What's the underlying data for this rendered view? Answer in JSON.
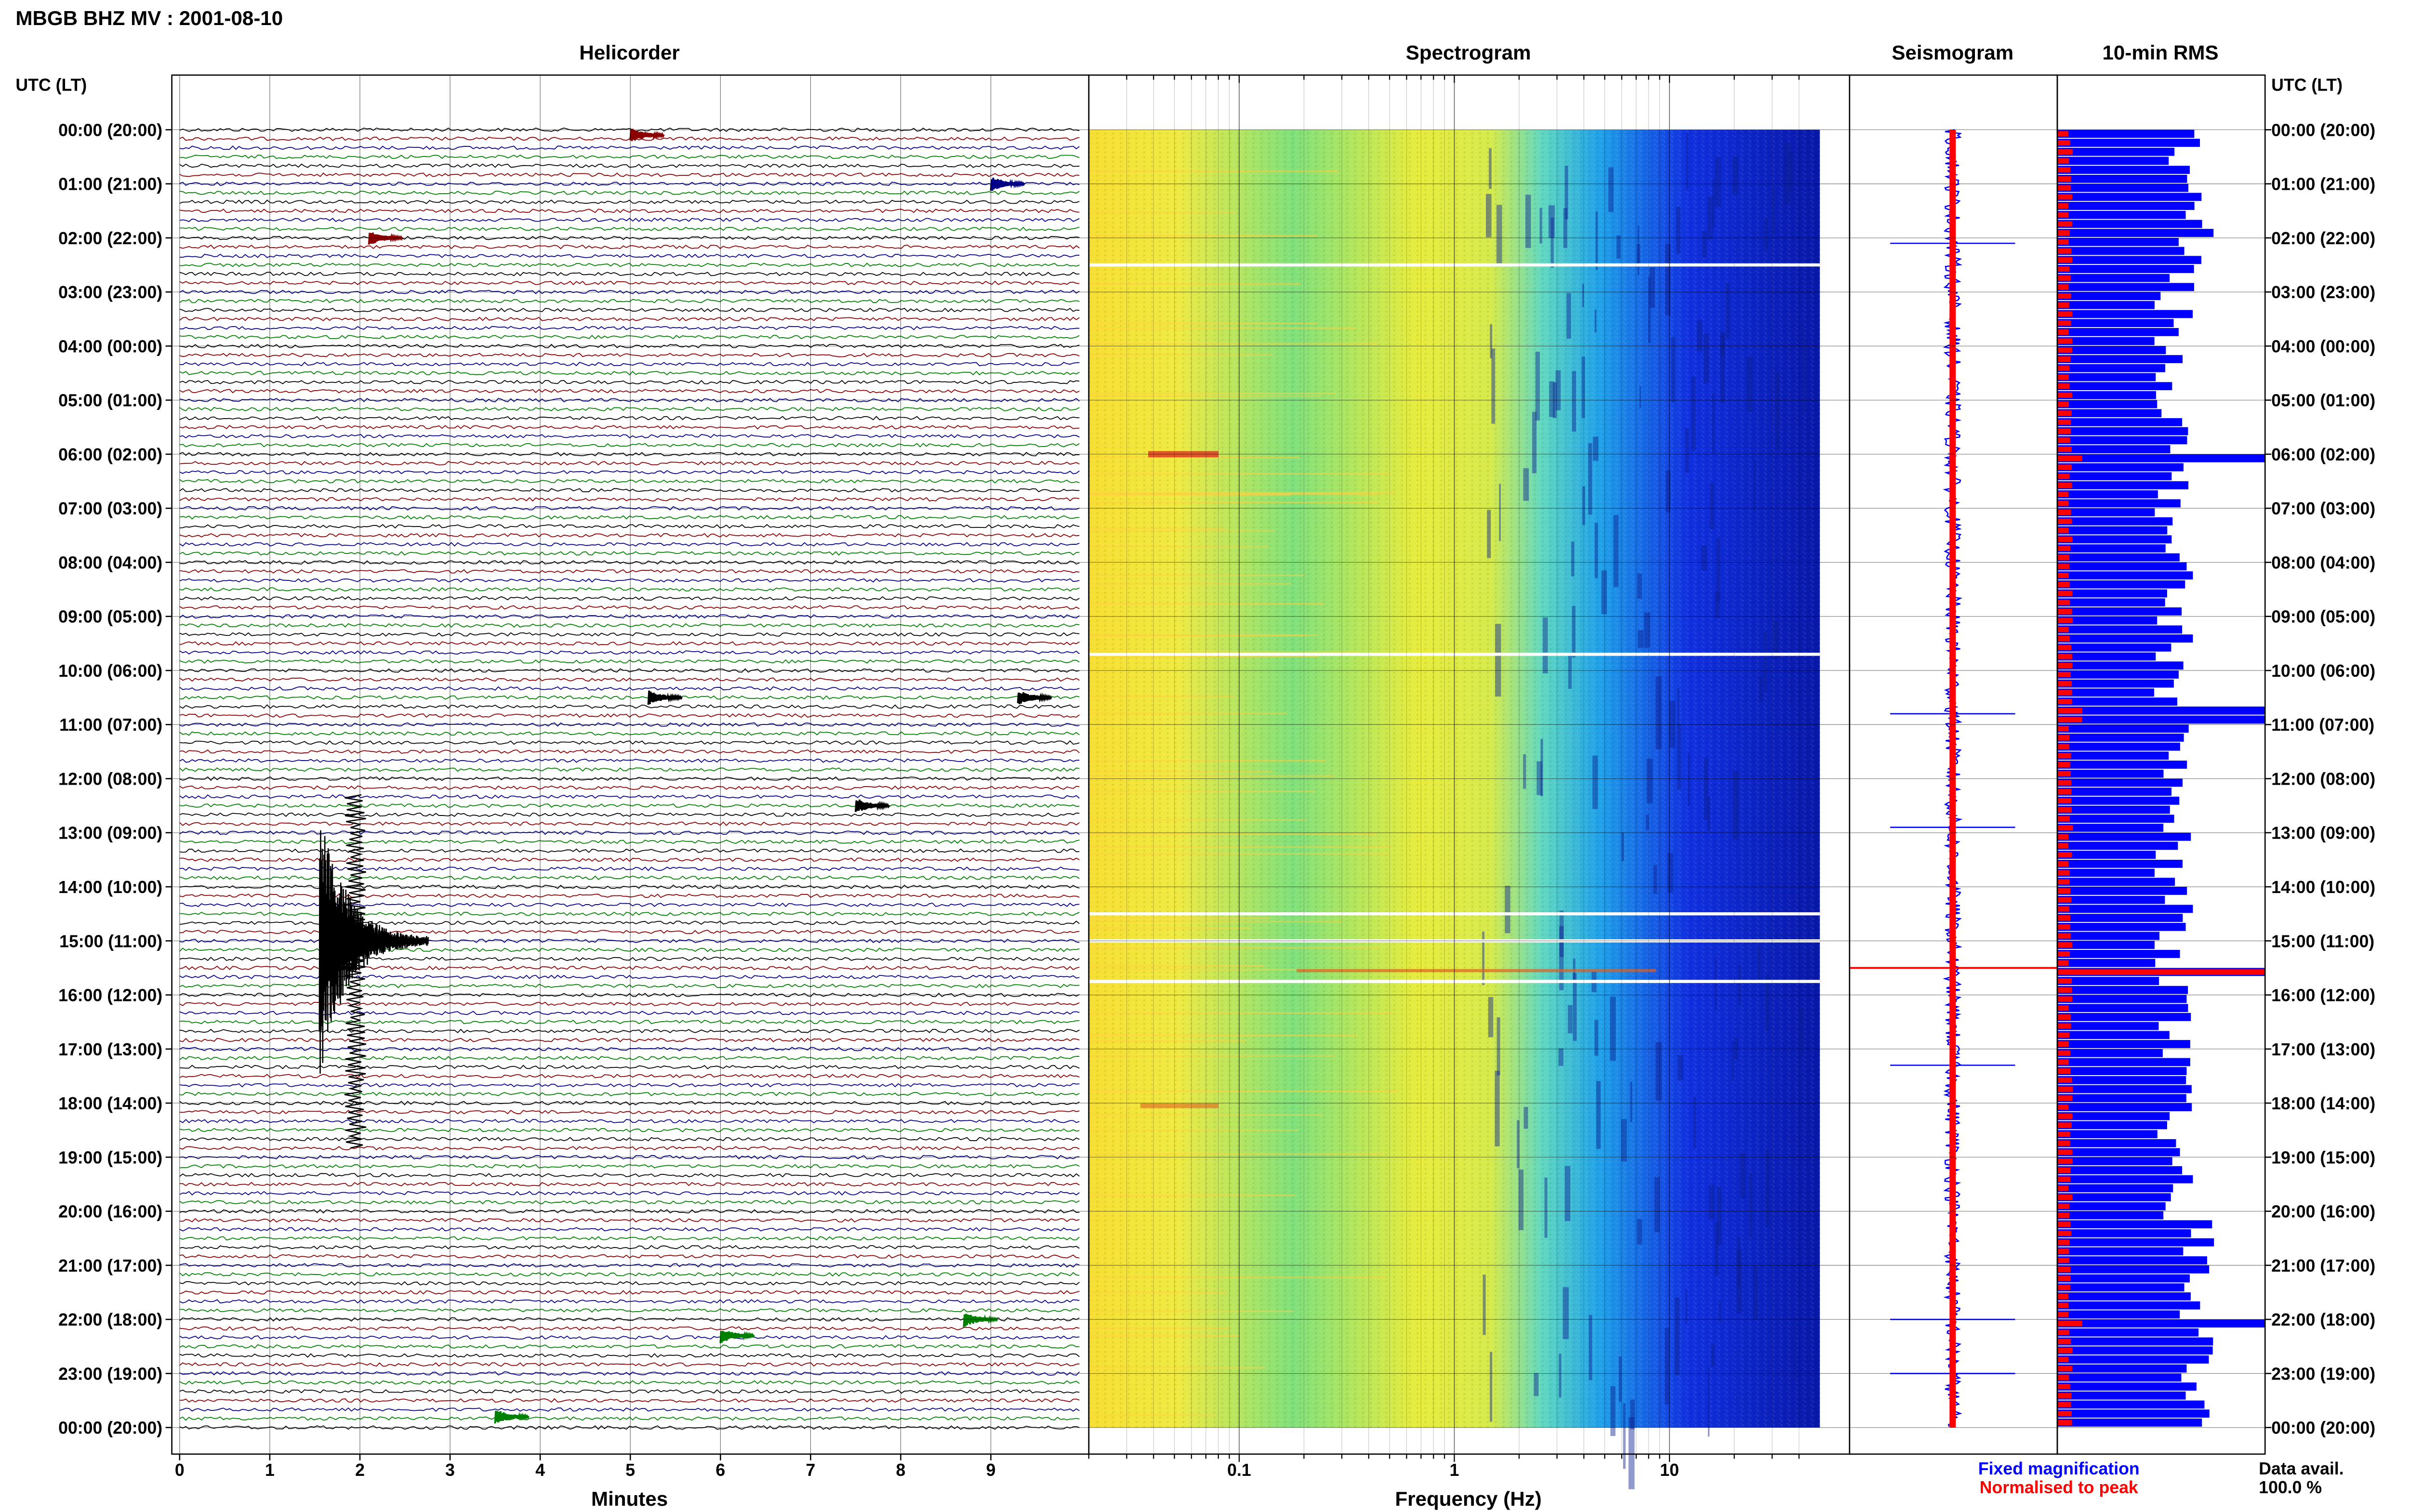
{
  "figure": {
    "title": "MBGB BHZ MV : 2001-08-10",
    "utc_header": "UTC (LT)",
    "utc_header_right": "UTC (LT)",
    "legend": {
      "fixed": "Fixed magnification",
      "normalised": "Normalised to peak"
    },
    "data_avail": {
      "label": "Data avail.",
      "value": "100.0 %"
    },
    "colors": {
      "black": "#000000",
      "red": "#8b0000",
      "blue": "#00008b",
      "green": "#008000",
      "fixed": "#0000ff",
      "normalised": "#ff0000"
    }
  },
  "chart_data": [
    {
      "type": "line",
      "panel": "helicorder",
      "title": "Helicorder",
      "xlabel": "Minutes",
      "xlim": [
        0,
        10
      ],
      "xticks": [
        "0",
        "1",
        "2",
        "3",
        "4",
        "5",
        "6",
        "7",
        "8",
        "9"
      ],
      "time_labels": [
        "00:00 (20:00)",
        "01:00 (21:00)",
        "02:00 (22:00)",
        "03:00 (23:00)",
        "04:00 (00:00)",
        "05:00 (01:00)",
        "06:00 (02:00)",
        "07:00 (03:00)",
        "08:00 (04:00)",
        "09:00 (05:00)",
        "10:00 (06:00)",
        "11:00 (07:00)",
        "12:00 (08:00)",
        "13:00 (09:00)",
        "14:00 (10:00)",
        "15:00 (11:00)",
        "16:00 (12:00)",
        "17:00 (13:00)",
        "18:00 (14:00)",
        "19:00 (15:00)",
        "20:00 (16:00)",
        "21:00 (17:00)",
        "22:00 (18:00)",
        "23:00 (19:00)",
        "00:00 (20:00)"
      ],
      "trace_colors": [
        "black",
        "red",
        "blue",
        "green"
      ],
      "traces_per_hour": 6,
      "events": [
        {
          "hour": 0.1,
          "minute": 5.0,
          "color": "red"
        },
        {
          "hour": 1.0,
          "minute": 9.0,
          "color": "blue"
        },
        {
          "hour": 2.0,
          "minute": 2.1,
          "color": "red"
        },
        {
          "hour": 10.5,
          "minute": 5.2,
          "color": "black"
        },
        {
          "hour": 10.5,
          "minute": 9.3,
          "color": "black"
        },
        {
          "hour": 12.5,
          "minute": 7.5,
          "color": "black"
        },
        {
          "hour": 15.5,
          "minute": 1.6,
          "color": "black"
        },
        {
          "hour": 22.0,
          "minute": 8.7,
          "color": "green"
        },
        {
          "hour": 22.3,
          "minute": 6.0,
          "color": "green"
        },
        {
          "hour": 23.8,
          "minute": 3.5,
          "color": "green"
        }
      ]
    },
    {
      "type": "heatmap",
      "panel": "spectrogram",
      "title": "Spectrogram",
      "xlabel": "Frequency (Hz)",
      "xscale": "log",
      "xlim": [
        0.02,
        50
      ],
      "xticks": [
        "0.1",
        "1",
        "10"
      ],
      "gaps_hour": [
        2.5,
        9.7,
        14.5,
        15.0,
        15.75
      ]
    },
    {
      "type": "line",
      "panel": "seismogram",
      "title": "Seismogram",
      "spikes_hour": [
        2.1,
        10.8,
        12.9,
        15.5,
        17.3,
        22.0,
        23.0
      ]
    },
    {
      "type": "bar",
      "panel": "rms",
      "title": "10-min RMS",
      "series": [
        {
          "name": "Fixed magnification",
          "color": "#0000ff"
        },
        {
          "name": "Normalised to peak",
          "color": "#ff0000"
        }
      ],
      "peak_hour": 15.5
    }
  ]
}
